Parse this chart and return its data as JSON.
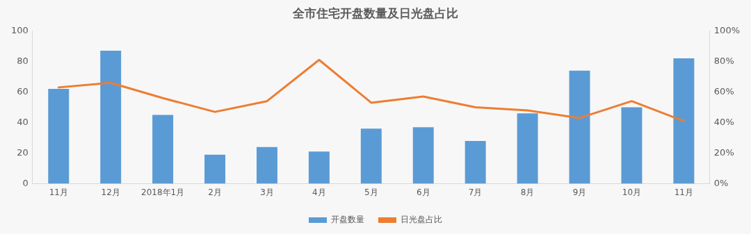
{
  "chart_data": {
    "type": "bar",
    "title": "全市住宅开盘数量及日光盘占比",
    "categories": [
      "11月",
      "12月",
      "2018年1月",
      "2月",
      "3月",
      "4月",
      "5月",
      "6月",
      "7月",
      "8月",
      "9月",
      "10月",
      "11月"
    ],
    "series": [
      {
        "name": "开盘数量",
        "color": "#5b9bd5",
        "values": [
          62,
          87,
          45,
          19,
          24,
          21,
          36,
          37,
          28,
          46,
          74,
          50,
          82
        ]
      },
      {
        "name": "日光盘占比",
        "type": "line",
        "axis": "y2",
        "color": "#ed7d31",
        "values": [
          63,
          66,
          56,
          47,
          54,
          81,
          53,
          57,
          50,
          48,
          43,
          54,
          41
        ]
      }
    ],
    "ylim": [
      0,
      100
    ],
    "yticks": [
      0,
      20,
      40,
      60,
      80,
      100
    ],
    "y2lim": [
      0,
      100
    ],
    "y2ticks": [
      {
        "value": 0,
        "label": "0%"
      },
      {
        "value": 20,
        "label": "20%"
      },
      {
        "value": 40,
        "label": "40%"
      },
      {
        "value": 60,
        "label": "60%"
      },
      {
        "value": 80,
        "label": "80%"
      },
      {
        "value": 100,
        "label": "100%"
      }
    ],
    "grid": false,
    "legend": "bottom",
    "marker": "none",
    "line_style": "solid"
  }
}
